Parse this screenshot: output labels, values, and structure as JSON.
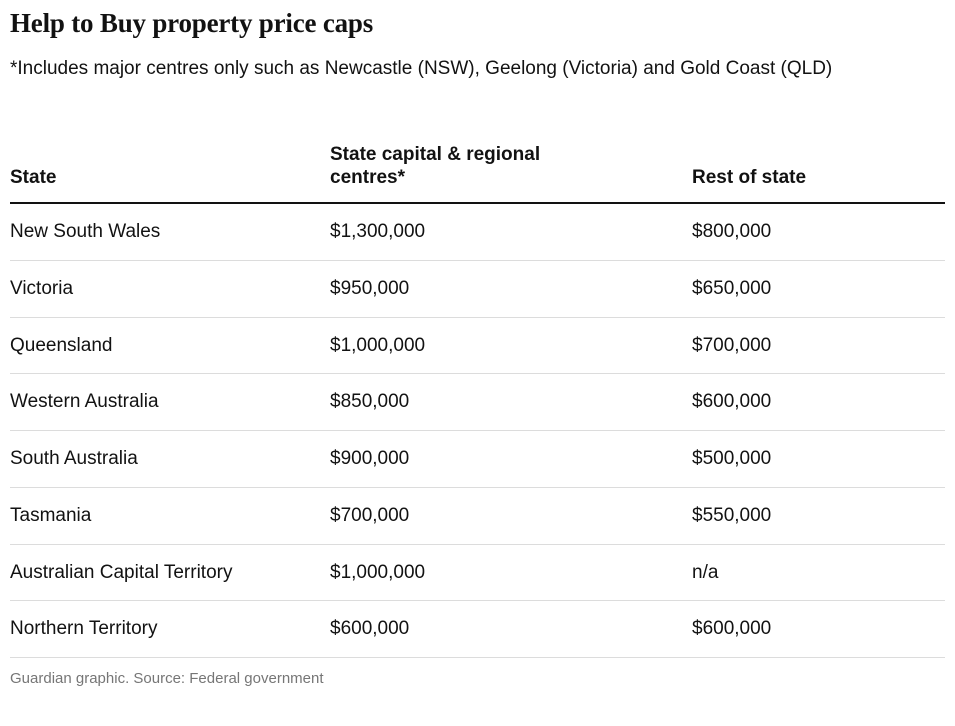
{
  "header": {
    "title": "Help to Buy property price caps",
    "note": "*Includes major centres only such as Newcastle (NSW), Geelong (Victoria) and Gold Coast (QLD)"
  },
  "table": {
    "columns": [
      "State",
      "State capital & regional centres*",
      "Rest of state"
    ],
    "rows": [
      {
        "state": "New South Wales",
        "capital": "$1,300,000",
        "rest": "$800,000"
      },
      {
        "state": "Victoria",
        "capital": "$950,000",
        "rest": "$650,000"
      },
      {
        "state": "Queensland",
        "capital": "$1,000,000",
        "rest": "$700,000"
      },
      {
        "state": "Western Australia",
        "capital": "$850,000",
        "rest": "$600,000"
      },
      {
        "state": "South Australia",
        "capital": "$900,000",
        "rest": "$500,000"
      },
      {
        "state": "Tasmania",
        "capital": "$700,000",
        "rest": "$550,000"
      },
      {
        "state": "Australian Capital Territory",
        "capital": "$1,000,000",
        "rest": "n/a"
      },
      {
        "state": "Northern Territory",
        "capital": "$600,000",
        "rest": "$600,000"
      }
    ]
  },
  "footer": {
    "credit": "Guardian graphic. Source: Federal government"
  },
  "colors": {
    "text": "#121212",
    "header_rule": "#121212",
    "row_divider": "#dcdcdc",
    "muted": "#767676",
    "background": "#ffffff"
  },
  "chart_data": {
    "type": "table",
    "title": "Help to Buy property price caps",
    "footnote": "*Includes major centres only such as Newcastle (NSW), Geelong (Victoria) and Gold Coast (QLD)",
    "columns": [
      "State",
      "State capital & regional centres*",
      "Rest of state"
    ],
    "rows": [
      [
        "New South Wales",
        1300000,
        800000
      ],
      [
        "Victoria",
        950000,
        650000
      ],
      [
        "Queensland",
        1000000,
        700000
      ],
      [
        "Western Australia",
        850000,
        600000
      ],
      [
        "South Australia",
        900000,
        500000
      ],
      [
        "Tasmania",
        700000,
        550000
      ],
      [
        "Australian Capital Territory",
        1000000,
        null
      ],
      [
        "Northern Territory",
        600000,
        600000
      ]
    ],
    "source": "Federal government"
  }
}
